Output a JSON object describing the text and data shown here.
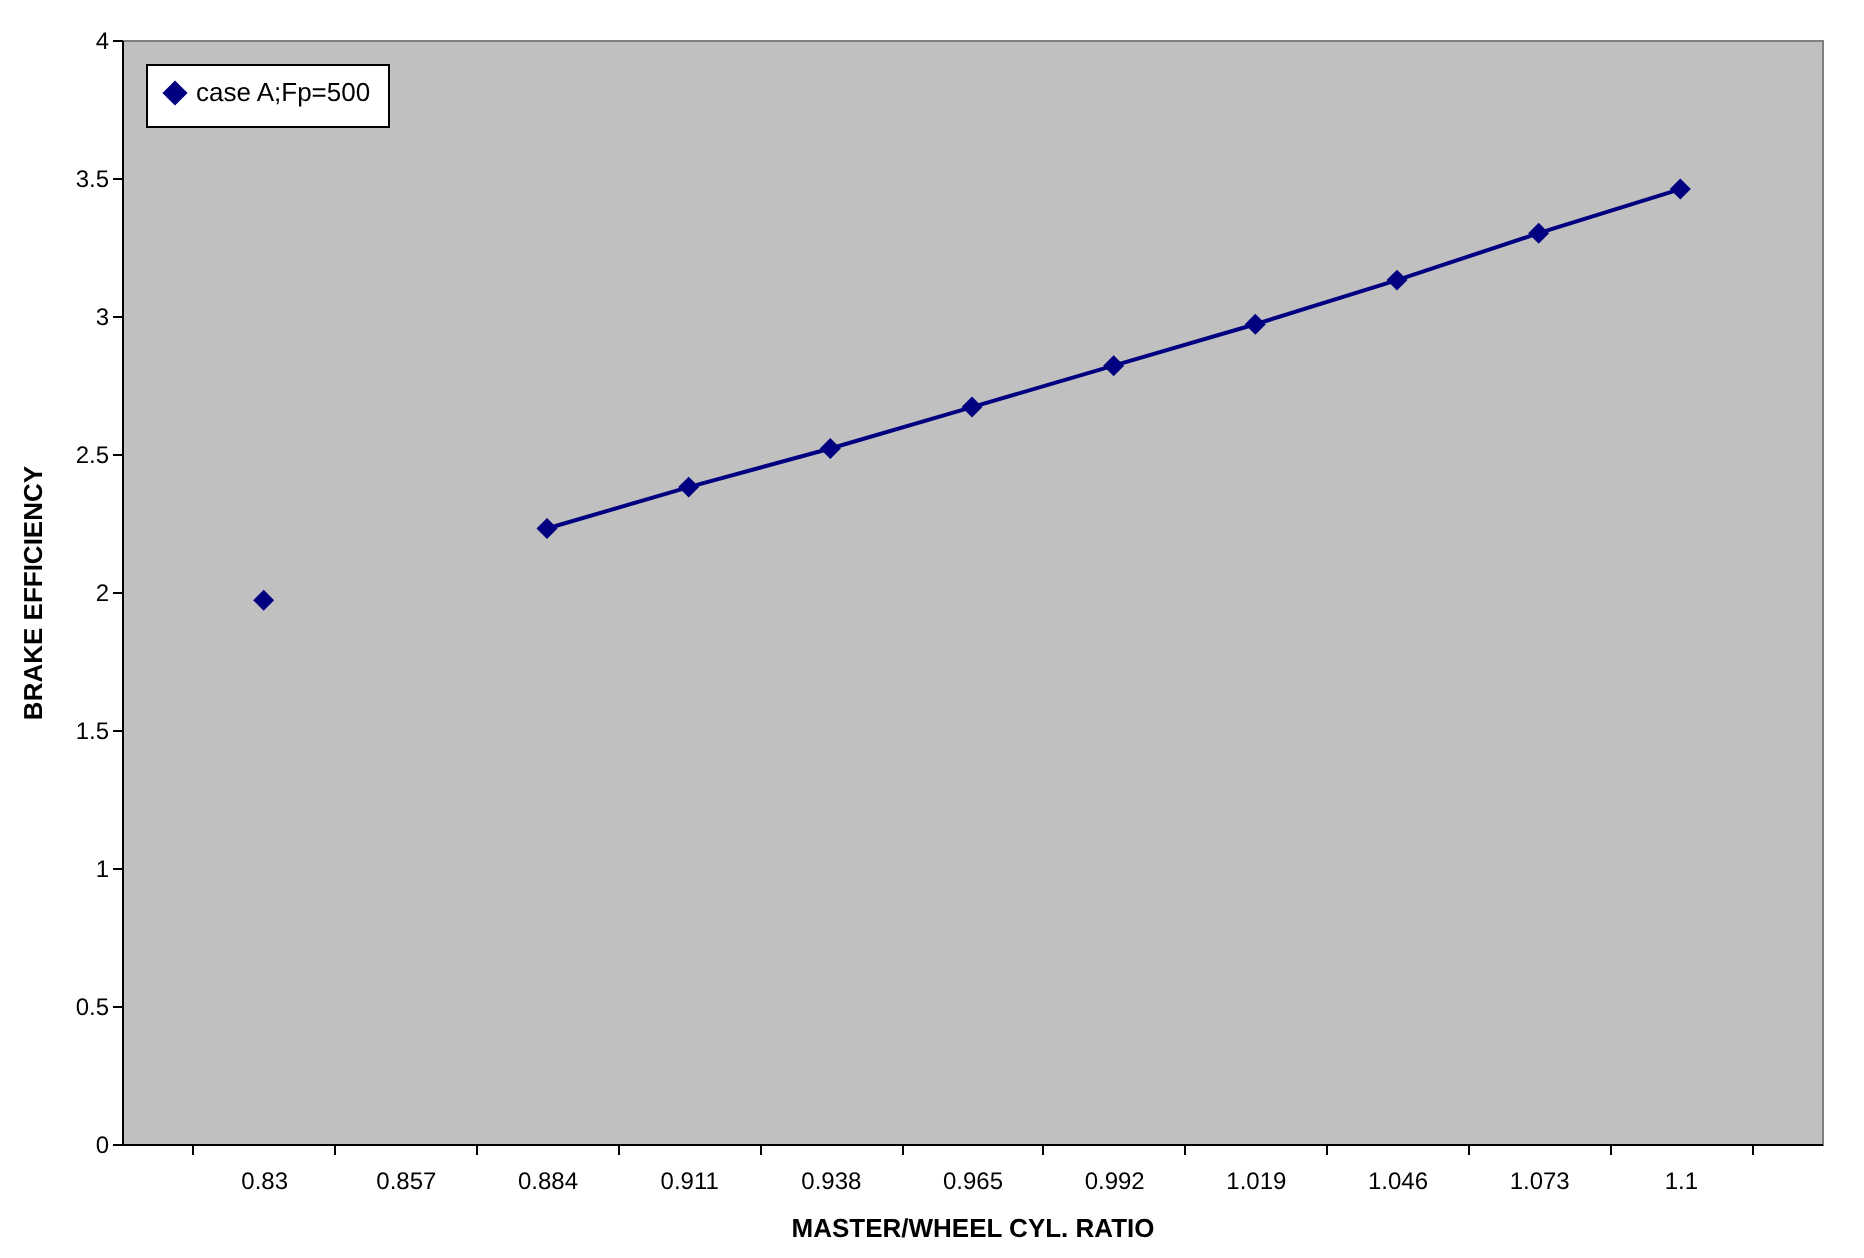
{
  "chart_data": {
    "type": "line",
    "xlabel": "MASTER/WHEEL CYL. RATIO",
    "ylabel": "BRAKE EFFICIENCY",
    "categories": [
      "0.83",
      "0.857",
      "0.884",
      "0.911",
      "0.938",
      "0.965",
      "0.992",
      "1.019",
      "1.046",
      "1.073",
      "1.1"
    ],
    "series": [
      {
        "name": "case A;Fp=500",
        "color": "#000080",
        "values": [
          1.97,
          null,
          2.23,
          2.38,
          2.52,
          2.67,
          2.82,
          2.97,
          3.13,
          3.3,
          3.46
        ]
      }
    ],
    "ylim": [
      0,
      4
    ],
    "yticks": [
      0,
      0.5,
      1,
      1.5,
      2,
      2.5,
      3,
      3.5,
      4
    ],
    "grid": false,
    "legend": "top left",
    "marker": "diamond",
    "line_style": "solid"
  }
}
